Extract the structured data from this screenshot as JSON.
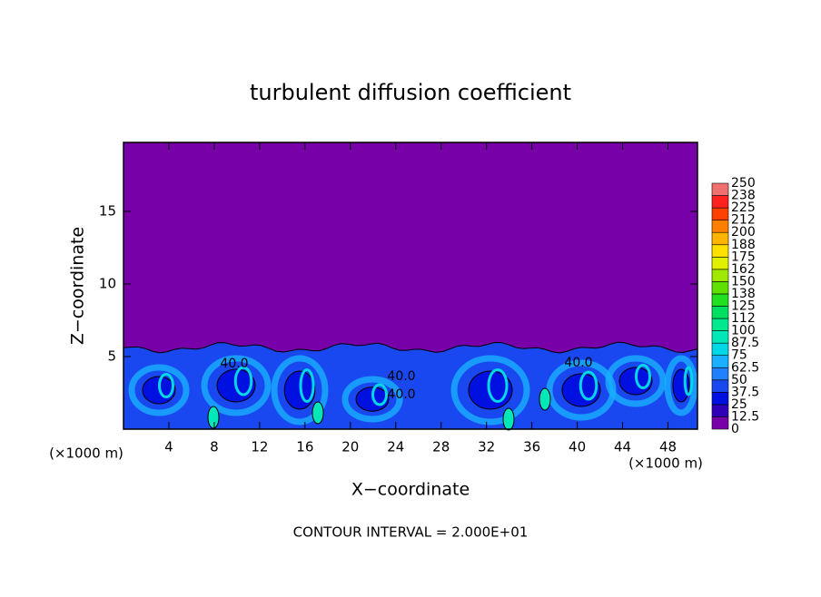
{
  "chart_data": {
    "type": "contour",
    "title": "turbulent diffusion coefficient",
    "xlabel": "X−coordinate",
    "ylabel": "Z−coordinate",
    "xunit_left": "(×1000 m)",
    "xunit_right": "(×1000 m)",
    "footer": "CONTOUR INTERVAL = 2.000E+01",
    "xlim": [
      0,
      50.6
    ],
    "ylim": [
      0,
      19.75
    ],
    "xticks": [
      4,
      8,
      12,
      16,
      20,
      24,
      28,
      32,
      36,
      40,
      44,
      48
    ],
    "yticks": [
      5,
      10,
      15
    ],
    "contour_labels": [
      "40.0",
      "40.0",
      "40.0",
      "40.0"
    ],
    "levels": [
      0,
      12.5,
      25,
      37.5,
      50,
      62.5,
      75,
      87.5,
      100,
      {
        "value": 112.5,
        "label": "112"
      },
      125,
      {
        "value": 137.5,
        "label": "138"
      },
      150,
      {
        "value": 162.5,
        "label": "162"
      },
      175,
      {
        "value": 187.5,
        "label": "188"
      },
      200,
      {
        "value": 212.5,
        "label": "212"
      },
      225,
      {
        "value": 237.5,
        "label": "238"
      },
      250
    ],
    "colors": [
      "#7800a8",
      "#3000b8",
      "#0010e0",
      "#1a48f0",
      "#2080ff",
      "#18b0ff",
      "#00d8e8",
      "#00e8b8",
      "#00e890",
      "#00e060",
      "#20e020",
      "#60e000",
      "#a0e800",
      "#e0f000",
      "#ffe000",
      "#ffb400",
      "#ff8000",
      "#ff4000",
      "#ff2020",
      "#f07070"
    ]
  }
}
